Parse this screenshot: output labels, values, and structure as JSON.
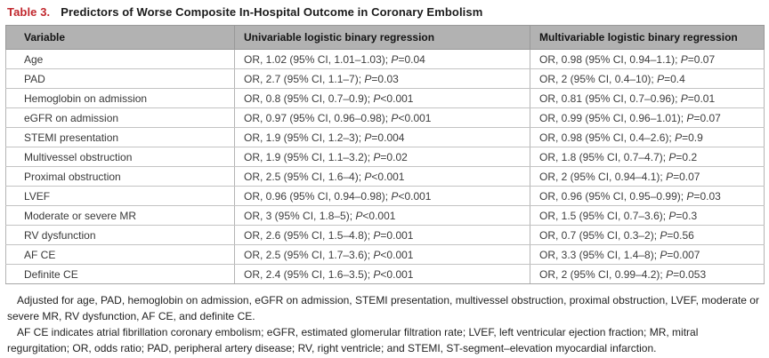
{
  "header": {
    "table_label": "Table 3.",
    "title": "Predictors of Worse Composite In-Hospital Outcome in Coronary Embolism"
  },
  "colors": {
    "accent_red": "#c1272d",
    "header_row_bg": "#b2b2b2"
  },
  "table": {
    "columns": [
      "Variable",
      "Univariable logistic binary regression",
      "Multivariable logistic binary regression"
    ],
    "rows": [
      {
        "variable": "Age",
        "univariable": "OR, 1.02 (95% CI, 1.01–1.03); P=0.04",
        "multivariable": "OR, 0.98 (95% CI, 0.94–1.1); P=0.07"
      },
      {
        "variable": "PAD",
        "univariable": "OR, 2.7 (95% CI, 1.1–7); P=0.03",
        "multivariable": "OR, 2 (95% CI, 0.4–10); P=0.4"
      },
      {
        "variable": "Hemoglobin on admission",
        "univariable": "OR, 0.8 (95% CI, 0.7–0.9); P<0.001",
        "multivariable": "OR, 0.81 (95% CI, 0.7–0.96); P=0.01"
      },
      {
        "variable": "eGFR on admission",
        "univariable": "OR, 0.97 (95% CI, 0.96–0.98); P<0.001",
        "multivariable": "OR, 0.99 (95% CI, 0.96–1.01); P=0.07"
      },
      {
        "variable": "STEMI presentation",
        "univariable": "OR, 1.9 (95% CI, 1.2–3); P=0.004",
        "multivariable": "OR, 0.98 (95% CI, 0.4–2.6); P=0.9"
      },
      {
        "variable": "Multivessel obstruction",
        "univariable": "OR, 1.9 (95% CI, 1.1–3.2); P=0.02",
        "multivariable": "OR, 1.8 (95% CI, 0.7–4.7); P=0.2"
      },
      {
        "variable": "Proximal obstruction",
        "univariable": "OR, 2.5 (95% CI, 1.6–4); P<0.001",
        "multivariable": "OR, 2 (95% CI, 0.94–4.1); P=0.07"
      },
      {
        "variable": "LVEF",
        "univariable": "OR, 0.96 (95% CI, 0.94–0.98); P<0.001",
        "multivariable": "OR, 0.96 (95% CI, 0.95–0.99); P=0.03"
      },
      {
        "variable": "Moderate or severe MR",
        "univariable": "OR, 3 (95% CI, 1.8–5); P<0.001",
        "multivariable": "OR, 1.5 (95% CI, 0.7–3.6); P=0.3"
      },
      {
        "variable": "RV dysfunction",
        "univariable": "OR, 2.6 (95% CI, 1.5–4.8); P=0.001",
        "multivariable": "OR, 0.7 (95% CI, 0.3–2); P=0.56"
      },
      {
        "variable": "AF CE",
        "univariable": "OR, 2.5 (95% CI, 1.7–3.6); P<0.001",
        "multivariable": "OR, 3.3 (95% CI, 1.4–8); P=0.007"
      },
      {
        "variable": "Definite CE",
        "univariable": "OR, 2.4 (95% CI, 1.6–3.5); P<0.001",
        "multivariable": "OR, 2 (95% CI, 0.99–4.2); P=0.053"
      }
    ]
  },
  "footnotes": {
    "adjustment_note": "Adjusted for age, PAD, hemoglobin on admission, eGFR on admission, STEMI presentation, multivessel obstruction, proximal obstruction, LVEF, moderate or severe MR, RV dysfunction, AF CE, and definite CE.",
    "abbreviations_note": "AF CE indicates atrial fibrillation coronary embolism; eGFR, estimated glomerular filtration rate; LVEF, left ventricular ejection fraction; MR, mitral regurgitation; OR, odds ratio; PAD, peripheral artery disease; RV, right ventricle; and STEMI, ST-segment–elevation myocardial infarction."
  }
}
